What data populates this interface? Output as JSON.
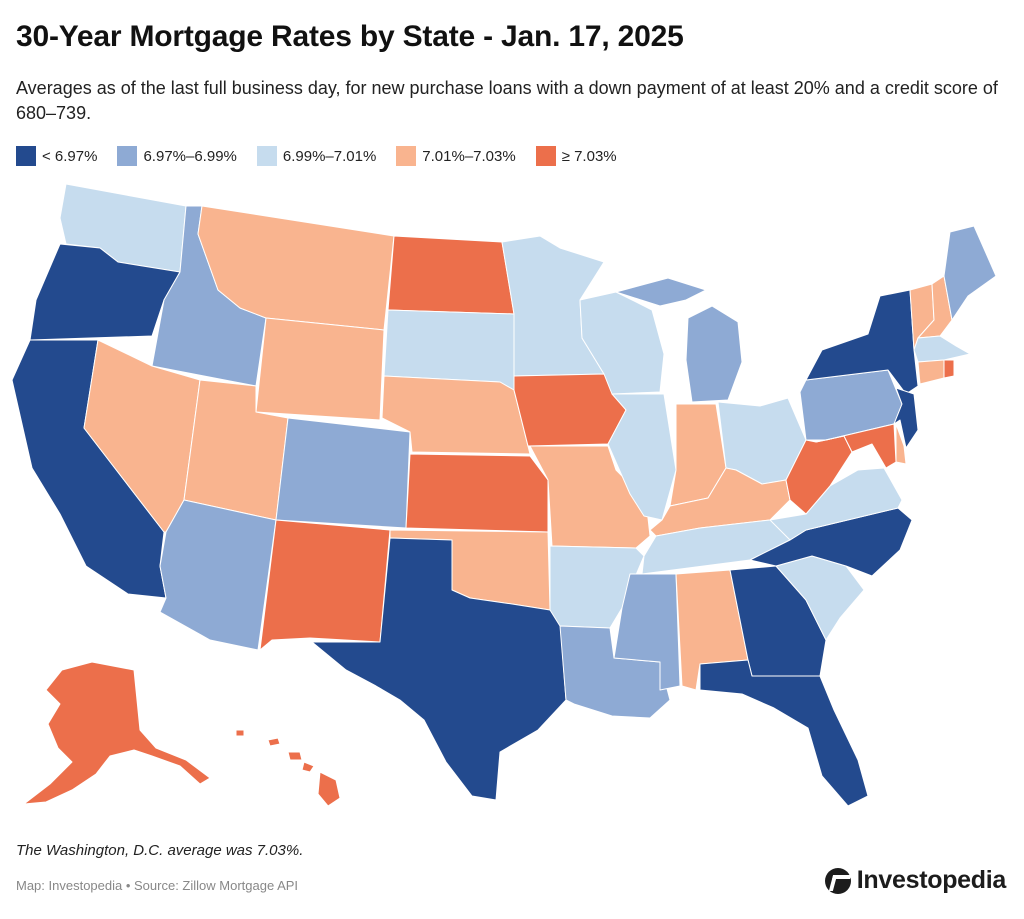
{
  "title": "30-Year Mortgage Rates by State - Jan. 17, 2025",
  "subtitle": "Averages as of the last full business day, for new purchase loans with a down payment of at least 20% and a credit score of 680–739.",
  "legend": [
    {
      "label": "< 6.97%",
      "color": "#234a8e"
    },
    {
      "label": "6.97%–6.99%",
      "color": "#8eaad4"
    },
    {
      "label": "6.99%–7.01%",
      "color": "#c6dcee"
    },
    {
      "label": "7.01%–7.03%",
      "color": "#f9b48f"
    },
    {
      "label": "≥ 7.03%",
      "color": "#ec6f4b"
    }
  ],
  "states": {
    "WA": 2,
    "OR": 0,
    "CA": 0,
    "ID": 1,
    "NV": 3,
    "MT": 3,
    "WY": 3,
    "UT": 3,
    "AZ": 1,
    "CO": 1,
    "NM": 4,
    "ND": 4,
    "SD": 2,
    "NE": 3,
    "KS": 4,
    "OK": 3,
    "TX": 0,
    "MN": 2,
    "IA": 4,
    "MO": 3,
    "AR": 2,
    "LA": 1,
    "WI": 2,
    "IL": 2,
    "MI": 1,
    "IN": 3,
    "OH": 2,
    "KY": 3,
    "TN": 2,
    "MS": 1,
    "AL": 3,
    "GA": 0,
    "FL": 0,
    "SC": 2,
    "NC": 0,
    "VA": 2,
    "WV": 4,
    "PA": 1,
    "NY": 0,
    "NJ": 0,
    "DE": 3,
    "MD": 4,
    "ME": 1,
    "NH": 3,
    "VT": 3,
    "MA": 2,
    "CT": 3,
    "RI": 4,
    "AK": 4,
    "HI": 4
  },
  "note": "The Washington, D.C. average was 7.03%.",
  "credit": "Map: Investopedia • Source: Zillow Mortgage API",
  "brand": "Investopedia"
}
